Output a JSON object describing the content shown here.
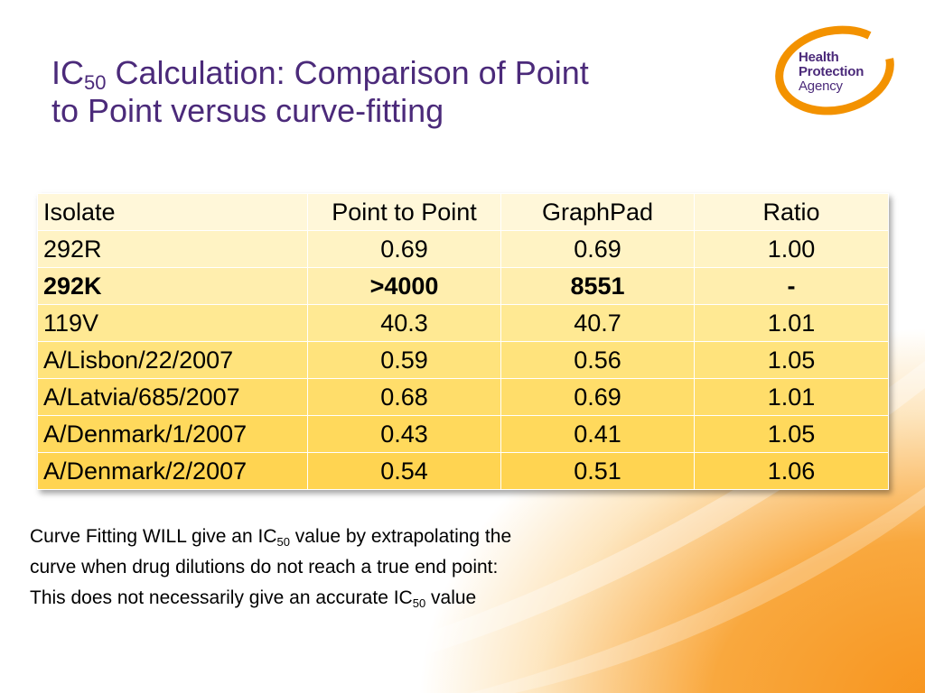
{
  "slide": {
    "title": {
      "prefix": "IC",
      "subscript": "50",
      "rest_line1": " Calculation: Comparison of Point",
      "line2": "to Point versus curve-fitting"
    },
    "logo": {
      "line1": "Health",
      "line2": "Protection",
      "line3": "Agency",
      "accent_color": "#f39200",
      "text_color": "#4b2a7a"
    }
  },
  "table": {
    "headers": [
      "Isolate",
      "Point to Point",
      "GraphPad",
      "Ratio"
    ],
    "rows": [
      [
        "292R",
        "0.69",
        "0.69",
        "1.00"
      ],
      [
        "292K",
        ">4000",
        "8551",
        "-"
      ],
      [
        "119V",
        "40.3",
        "40.7",
        "1.01"
      ],
      [
        "A/Lisbon/22/2007",
        "0.59",
        "0.56",
        "1.05"
      ],
      [
        "A/Latvia/685/2007",
        "0.68",
        "0.69",
        "1.01"
      ],
      [
        "A/Denmark/1/2007",
        "0.43",
        "0.41",
        "1.05"
      ],
      [
        "A/Denmark/2/2007",
        "0.54",
        "0.51",
        "1.06"
      ]
    ],
    "bold_row_index": 1
  },
  "note": {
    "line1_a": "Curve Fitting WILL give an IC",
    "line1_sub": "50",
    "line1_b": " value by extrapolating the",
    "line2": "curve when drug dilutions do not reach a true end point:",
    "line3_a": "This does not necessarily give an accurate IC",
    "line3_sub": "50",
    "line3_b": " value"
  },
  "colors": {
    "title": "#4b2a7a",
    "background_accent": "#f7941d"
  }
}
